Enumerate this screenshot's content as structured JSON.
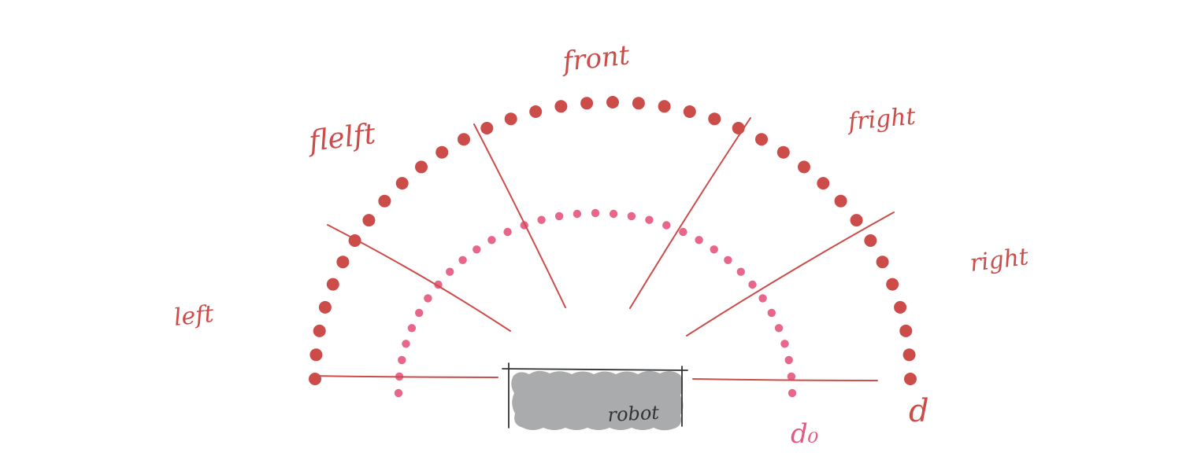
{
  "diagram": {
    "colors": {
      "outer_arc": "#cc4c4a",
      "inner_arc": "#e8668a",
      "lines": "#cc4c4a",
      "labels": "#cc4c4a",
      "inner_label": "#e05a82",
      "robot_fill": "#aaabad",
      "robot_outline": "#333333",
      "robot_text": "#333333"
    },
    "sector_labels": {
      "left": "left",
      "front_left": "flelft",
      "front": "front",
      "front_right": "fright",
      "right": "right"
    },
    "distance_labels": {
      "outer": "d",
      "inner": "d₀"
    },
    "robot_label": "robot"
  }
}
